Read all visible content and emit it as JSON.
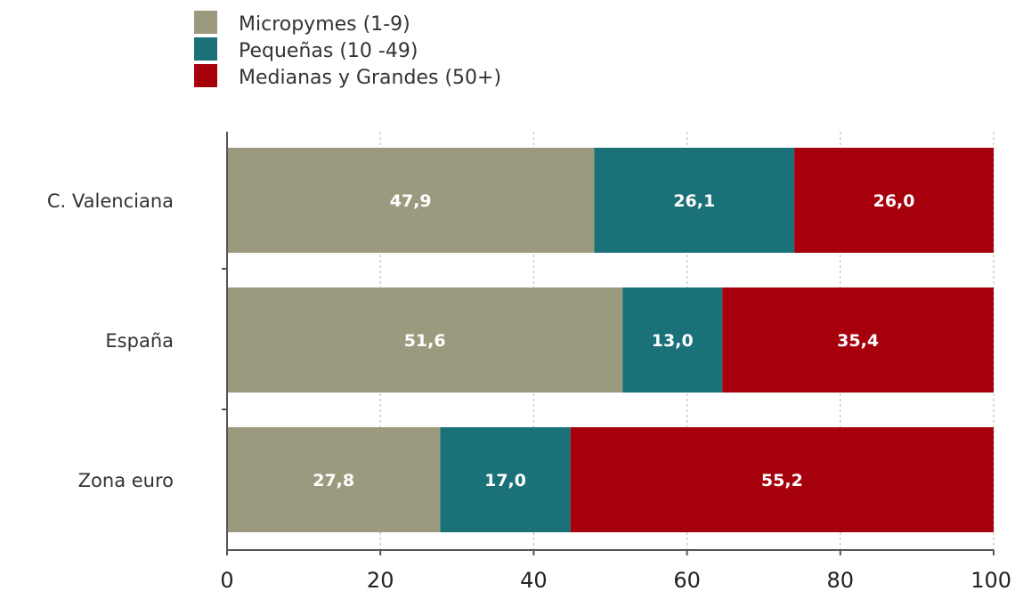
{
  "chart_data": {
    "type": "bar",
    "orientation": "horizontal",
    "stacked": true,
    "categories": [
      "C. Valenciana",
      "España",
      "Zona euro"
    ],
    "series": [
      {
        "name": "Micropymes (1-9)",
        "values": [
          47.9,
          51.6,
          27.8
        ],
        "labels": [
          "47,9",
          "51,6",
          "27,8"
        ],
        "color": "#9c9a7e"
      },
      {
        "name": "Pequeñas (10 -49)",
        "values": [
          26.1,
          13.0,
          17.0
        ],
        "labels": [
          "26,1",
          "13,0",
          "17,0"
        ],
        "color": "#1b7178"
      },
      {
        "name": "Medianas y Grandes (50+)",
        "values": [
          26.0,
          35.4,
          55.2
        ],
        "labels": [
          "26,0",
          "35,4",
          "55,2"
        ],
        "color": "#a5000c"
      }
    ],
    "xlim": [
      0,
      100
    ],
    "xticks": [
      0,
      20,
      40,
      60,
      80,
      100
    ],
    "xtick_labels": [
      "0",
      "20",
      "40",
      "60",
      "80",
      "100"
    ],
    "grid": "vertical-dashed",
    "legend_position": "top-left",
    "title": "",
    "xlabel": "",
    "ylabel": ""
  }
}
